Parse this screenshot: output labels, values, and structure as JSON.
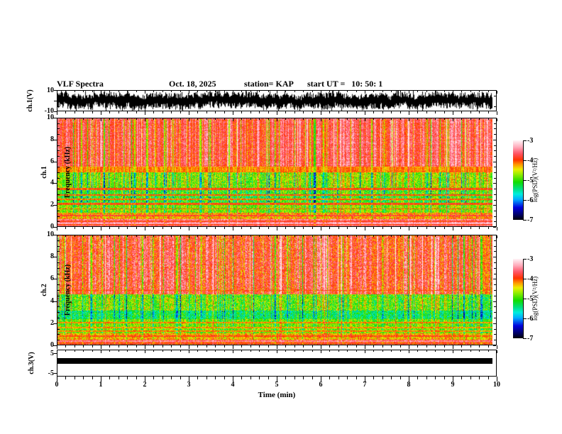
{
  "header": {
    "title": "VLF Spectra",
    "date": "Oct. 18, 2025",
    "station": "station= KAP",
    "start_ut": "start UT =   10: 50: 1"
  },
  "xaxis": {
    "label": "Time (min)",
    "ticks": [
      0,
      1,
      2,
      3,
      4,
      5,
      6,
      7,
      8,
      9,
      10
    ],
    "minor_per_major": 5,
    "range": [
      0,
      10
    ]
  },
  "panels": {
    "ch1_wave": {
      "ylabel": "ch.1(V)",
      "ytick_labels": [
        "10",
        "-10"
      ],
      "ylim": [
        -10,
        10
      ]
    },
    "spec1": {
      "ylabel_ch": "ch.1",
      "ylabel_freq": "Frequency (kHz)",
      "yticks": [
        0,
        2,
        4,
        6,
        8,
        10
      ]
    },
    "spec2": {
      "ylabel_ch": "ch.2",
      "ylabel_freq": "Frequency (kHz)",
      "yticks": [
        0,
        2,
        4,
        6,
        8,
        10
      ]
    },
    "ch3": {
      "ylabel": "ch.3(V)",
      "ytick_labels": [
        "5",
        "-5"
      ],
      "yticks": [
        5,
        -5
      ]
    }
  },
  "colorbar": {
    "label": "log(PSD)(V²/Hz)",
    "ticks": [
      "-3",
      "-4",
      "-5",
      "-6",
      "-7"
    ],
    "zlim": [
      -7,
      -3
    ]
  },
  "colormap": [
    [
      0.0,
      "#000000"
    ],
    [
      0.07,
      "#000066"
    ],
    [
      0.16,
      "#0000dd"
    ],
    [
      0.26,
      "#00aaff"
    ],
    [
      0.33,
      "#00eedd"
    ],
    [
      0.4,
      "#00e077"
    ],
    [
      0.48,
      "#11dd00"
    ],
    [
      0.58,
      "#99ee00"
    ],
    [
      0.64,
      "#eeee00"
    ],
    [
      0.7,
      "#ff9900"
    ],
    [
      0.76,
      "#ff3300"
    ],
    [
      0.84,
      "#ff5566"
    ],
    [
      0.92,
      "#ffaabb"
    ],
    [
      1.0,
      "#fff0f4"
    ]
  ],
  "chart_data": [
    {
      "type": "line",
      "name": "ch1_voltage_waveform",
      "ylabel": "ch.1(V)",
      "ylim": [
        -10,
        10
      ],
      "xlim": [
        0,
        10
      ],
      "xunit": "min",
      "signal": "dense broadband noise oscillating across nearly the full ±10 V range for the whole 10 minutes",
      "seed": 5
    },
    {
      "type": "heatmap",
      "name": "ch1_spectrogram",
      "xlabel": "Time (min)",
      "ylabel": "ch.1 Frequency (kHz)",
      "xlim": [
        0,
        10
      ],
      "ylim": [
        0,
        10
      ],
      "zlabel": "log(PSD)(V²/Hz)",
      "zlim": [
        -7,
        -3
      ],
      "seed": 11,
      "bands": [
        {
          "f0": 5.55,
          "f1": 10.0,
          "level": -3.7,
          "var": 0.3,
          "streak": 1.05
        },
        {
          "f0": 5.05,
          "f1": 5.55,
          "level": -4.15,
          "var": 0.2,
          "streak": 0.5
        },
        {
          "f0": 3.6,
          "f1": 5.05,
          "level": -4.7,
          "var": 0.5,
          "streak": 1.25
        },
        {
          "f0": 3.4,
          "f1": 3.6,
          "level": -3.95,
          "var": 0.15,
          "streak": 0.3
        },
        {
          "f0": 2.2,
          "f1": 3.4,
          "level": -5.0,
          "var": 0.55,
          "streak": 1.1
        },
        {
          "f0": 2.0,
          "f1": 2.2,
          "level": -3.95,
          "var": 0.15,
          "streak": 0.3
        },
        {
          "f0": 1.3,
          "f1": 2.0,
          "level": -4.75,
          "var": 0.45,
          "streak": 0.9
        },
        {
          "f0": 0.7,
          "f1": 1.3,
          "level": -4.15,
          "var": 0.4,
          "streak": 0.55
        },
        {
          "f0": 0.0,
          "f1": 0.7,
          "level": -3.5,
          "var": 0.3,
          "streak": 0.3
        }
      ],
      "hlines": [
        {
          "f": 2.95,
          "level": -4.0
        },
        {
          "f": 2.55,
          "level": -4.05
        },
        {
          "f": 1.65,
          "level": -4.1
        },
        {
          "f": 1.0,
          "level": -3.8
        },
        {
          "f": 0.5,
          "level": -3.9
        },
        {
          "f": 0.32,
          "level": -3.3
        },
        {
          "f": 0.18,
          "level": -3.85
        },
        {
          "f": 0.08,
          "level": -3.4
        }
      ]
    },
    {
      "type": "heatmap",
      "name": "ch2_spectrogram",
      "xlabel": "Time (min)",
      "ylabel": "ch.2 Frequency (kHz)",
      "xlim": [
        0,
        10
      ],
      "ylim": [
        0,
        10
      ],
      "zlabel": "log(PSD)(V²/Hz)",
      "zlim": [
        -7,
        -3
      ],
      "seed": 77,
      "bands": [
        {
          "f0": 4.65,
          "f1": 10.0,
          "level": -3.8,
          "var": 0.4,
          "streak": 1.2
        },
        {
          "f0": 3.15,
          "f1": 4.65,
          "level": -4.85,
          "var": 0.55,
          "streak": 1.15
        },
        {
          "f0": 2.4,
          "f1": 3.15,
          "level": -5.3,
          "var": 0.5,
          "streak": 0.95
        },
        {
          "f0": 1.1,
          "f1": 2.4,
          "level": -4.8,
          "var": 0.45,
          "streak": 0.85
        },
        {
          "f0": 0.5,
          "f1": 1.1,
          "level": -4.25,
          "var": 0.4,
          "streak": 0.55
        },
        {
          "f0": 0.0,
          "f1": 0.5,
          "level": -3.9,
          "var": 0.5,
          "streak": 0.4
        }
      ],
      "hlines": [
        {
          "f": 5.0,
          "level": -4.05
        },
        {
          "f": 2.05,
          "level": -4.1
        },
        {
          "f": 1.6,
          "level": -4.15
        },
        {
          "f": 1.25,
          "level": -4.1
        },
        {
          "f": 0.8,
          "level": -3.95
        },
        {
          "f": 0.35,
          "level": -3.5
        },
        {
          "f": 0.15,
          "level": -4.0
        }
      ]
    },
    {
      "type": "line",
      "name": "ch3_voltage_waveform",
      "ylabel": "ch.3(V)",
      "ylim": [
        -6.9,
        6.9
      ],
      "xlim": [
        0,
        10
      ],
      "xunit": "min",
      "signal": "flat saturated band (solid black bar) spanning the full record",
      "band_values": [
        -0.4,
        2.5
      ]
    }
  ]
}
